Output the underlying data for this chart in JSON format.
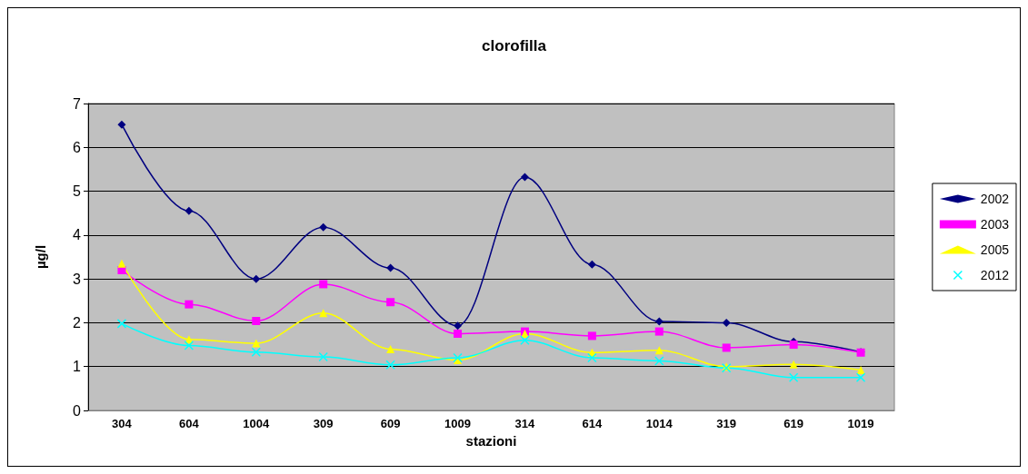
{
  "chart_data": {
    "type": "line",
    "title": "clorofilla",
    "xlabel": "stazioni",
    "ylabel": "µg/l",
    "categories": [
      "304",
      "604",
      "1004",
      "309",
      "609",
      "1009",
      "314",
      "614",
      "1014",
      "319",
      "619",
      "1019"
    ],
    "series": [
      {
        "name": "2002",
        "color": "#000080",
        "marker": "diamond",
        "values": [
          6.52,
          4.55,
          3.0,
          4.18,
          3.25,
          1.93,
          5.32,
          3.33,
          2.03,
          2.0,
          1.57,
          1.33
        ]
      },
      {
        "name": "2003",
        "color": "#ff00ff",
        "marker": "square",
        "values": [
          3.2,
          2.42,
          2.04,
          2.88,
          2.47,
          1.75,
          1.8,
          1.7,
          1.8,
          1.43,
          1.5,
          1.32
        ]
      },
      {
        "name": "2005",
        "color": "#ffff00",
        "marker": "triangle",
        "values": [
          3.35,
          1.62,
          1.53,
          2.22,
          1.4,
          1.15,
          1.75,
          1.32,
          1.37,
          1.0,
          1.05,
          0.92
        ]
      },
      {
        "name": "2012",
        "color": "#00ffff",
        "marker": "cross",
        "values": [
          1.98,
          1.48,
          1.33,
          1.22,
          1.04,
          1.2,
          1.6,
          1.2,
          1.13,
          0.97,
          0.75,
          0.75
        ]
      }
    ],
    "ylim": [
      0,
      7
    ],
    "yticks": [
      0,
      1,
      2,
      3,
      4,
      5,
      6,
      7
    ],
    "grid": "y",
    "legend": "right"
  }
}
